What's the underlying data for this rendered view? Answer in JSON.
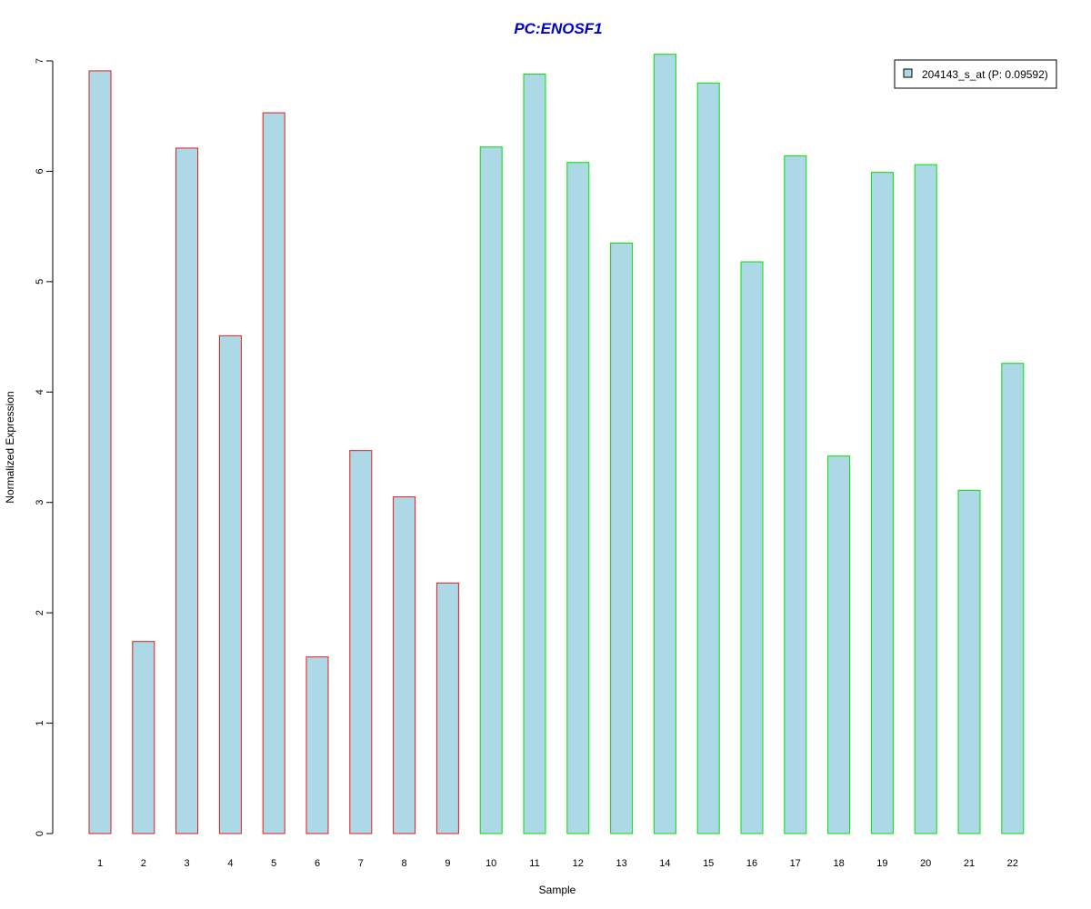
{
  "chart_data": {
    "type": "bar",
    "title": "PC:ENOSF1",
    "xlabel": "Sample",
    "ylabel": "Normalized Expression",
    "categories": [
      "1",
      "2",
      "3",
      "4",
      "5",
      "6",
      "7",
      "8",
      "9",
      "10",
      "11",
      "12",
      "13",
      "14",
      "15",
      "16",
      "17",
      "18",
      "19",
      "20",
      "21",
      "22"
    ],
    "series": [
      {
        "name": "204143_s_at (P: 0.09592)",
        "values": [
          6.91,
          1.74,
          6.21,
          4.51,
          6.53,
          1.6,
          3.47,
          3.05,
          2.27,
          6.22,
          6.88,
          6.08,
          5.35,
          7.06,
          6.8,
          5.18,
          6.14,
          3.42,
          5.99,
          6.06,
          3.11,
          4.26
        ]
      }
    ],
    "groups": [
      {
        "from": 1,
        "to": 9,
        "border_color": "#e41a1c"
      },
      {
        "from": 10,
        "to": 22,
        "border_color": "#00e000"
      }
    ],
    "ylim": [
      0,
      7
    ],
    "yticks": [
      0,
      1,
      2,
      3,
      4,
      5,
      6,
      7
    ],
    "bar_fill": "#add8e6",
    "title_color": "#0000cd",
    "legend_position": "top-right",
    "grid": false
  }
}
